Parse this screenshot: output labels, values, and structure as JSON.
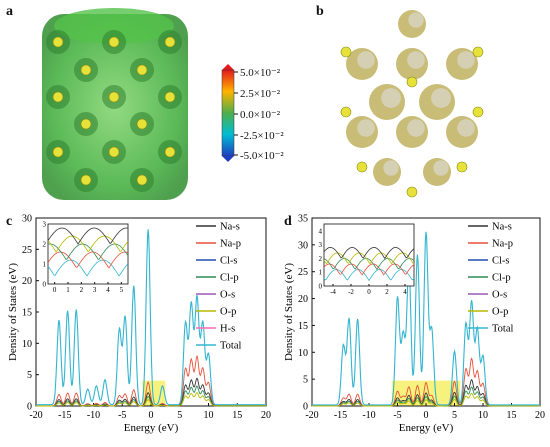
{
  "panels": {
    "a_label": "a",
    "b_label": "b",
    "c_label": "c",
    "d_label": "d"
  },
  "colorbar": {
    "ticks": [
      "5.0×10⁻²",
      "2.5×10⁻²",
      "0.0×10⁻²",
      "-2.5×10⁻²",
      "-5.0×10⁻²"
    ],
    "colors": [
      "#e41a1c",
      "#ff7f00",
      "#4daf4a",
      "#00bcd4",
      "#1f3fbf"
    ]
  },
  "colors": {
    "Na-s": "#333333",
    "Na-p": "#e8503a",
    "Cl-s": "#1f4fb4",
    "Cl-p": "#2e8b57",
    "O-s": "#9b59b6",
    "O-p": "#b8b800",
    "H-s": "#ff69b4",
    "Total": "#33b5d0",
    "highlight": "#f5f066"
  },
  "chart_data": [
    {
      "type": "line",
      "panel": "c",
      "xlabel": "Energy (eV)",
      "ylabel": "Density of States (eV)",
      "xlim": [
        -20,
        20
      ],
      "ylim": [
        0,
        30
      ],
      "xticks": [
        -20,
        -15,
        -10,
        -5,
        0,
        5,
        10,
        15,
        20
      ],
      "yticks": [
        0,
        5,
        10,
        15,
        20,
        25,
        30
      ],
      "legend": [
        "Na-s",
        "Na-p",
        "Cl-s",
        "Cl-p",
        "O-s",
        "O-p",
        "H-s",
        "Total"
      ],
      "highlight_region": [
        -1.5,
        2.5
      ],
      "total_peaks": [
        [
          -16,
          13.5
        ],
        [
          -14.5,
          15
        ],
        [
          -13,
          15.2
        ],
        [
          -11,
          2.5
        ],
        [
          -9.5,
          3
        ],
        [
          -8,
          4
        ],
        [
          -5.5,
          12
        ],
        [
          -4.5,
          14
        ],
        [
          -3,
          19
        ],
        [
          -0.5,
          28
        ],
        [
          2,
          3
        ],
        [
          6,
          13
        ],
        [
          7,
          16
        ],
        [
          8,
          17
        ],
        [
          9,
          13
        ],
        [
          10,
          8
        ]
      ],
      "inset": {
        "xlim": [
          -0.5,
          5.5
        ],
        "ylim": [
          0,
          3
        ],
        "xticks": [
          0,
          1,
          2,
          3,
          4,
          5
        ],
        "yticks": [
          0,
          1,
          2,
          3
        ]
      }
    },
    {
      "type": "line",
      "panel": "d",
      "xlabel": "Energy (eV)",
      "ylabel": "Density of States (eV)",
      "xlim": [
        -20,
        20
      ],
      "ylim": [
        0,
        35
      ],
      "xticks": [
        -20,
        -15,
        -10,
        -5,
        0,
        5,
        10,
        15,
        20
      ],
      "yticks": [
        0,
        5,
        10,
        15,
        20,
        25,
        30,
        35
      ],
      "legend": [
        "Na-s",
        "Na-p",
        "Cl-s",
        "Cl-p",
        "O-s",
        "O-p",
        "Total"
      ],
      "highlight_region": [
        -6,
        6
      ],
      "total_peaks": [
        [
          -14.5,
          11
        ],
        [
          -13.5,
          16
        ],
        [
          -12,
          16
        ],
        [
          -5,
          20
        ],
        [
          -4,
          13
        ],
        [
          -3,
          26
        ],
        [
          -1.5,
          28
        ],
        [
          0,
          32
        ],
        [
          1,
          14
        ],
        [
          5,
          10
        ],
        [
          7,
          15
        ],
        [
          8,
          19
        ],
        [
          9,
          14
        ],
        [
          10,
          9
        ]
      ],
      "inset": {
        "xlim": [
          -5,
          5
        ],
        "ylim": [
          0,
          4.5
        ],
        "xticks": [
          -4,
          -2,
          0,
          2,
          4
        ],
        "yticks": [
          0,
          1,
          2,
          3,
          4
        ]
      }
    }
  ]
}
